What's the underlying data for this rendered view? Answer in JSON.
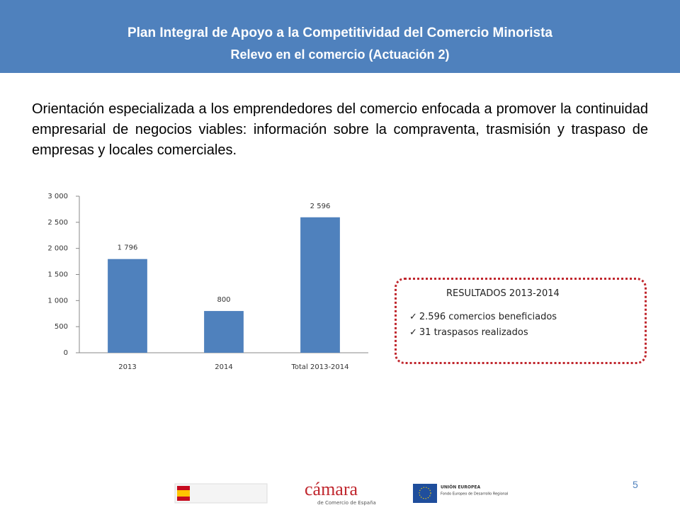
{
  "header": {
    "title": "Plan Integral de Apoyo a la Competitividad del Comercio Minorista",
    "subtitle": "Relevo en el comercio (Actuación 2)"
  },
  "body_text": "Orientación especializada a los emprendedores del comercio enfocada a promover la continuidad empresarial de negocios viables: información sobre la compraventa, trasmisión y traspaso de empresas y locales comerciales.",
  "chart_data": {
    "type": "bar",
    "categories": [
      "2013",
      "2014",
      "Total 2013-2014"
    ],
    "values": [
      1796,
      800,
      2596
    ],
    "value_labels": [
      "1 796",
      "800",
      "2 596"
    ],
    "color": "#4f81bd",
    "ylim": [
      0,
      3000
    ],
    "yticks": [
      0,
      500,
      {
        "value": 1000,
        "label": "1 000"
      },
      {
        "value": 1500,
        "label": "1 500"
      },
      {
        "value": 2000,
        "label": "2 000"
      },
      {
        "value": 2500,
        "label": "2 500"
      },
      {
        "value": 3000,
        "label": "3 000"
      }
    ],
    "grid": false
  },
  "results": {
    "title": "RESULTADOS 2013-2014",
    "items": [
      "2.596 comercios beneficiados",
      "31 traspasos realizados"
    ]
  },
  "footer": {
    "page_number": "5",
    "logo_camara": "cámara",
    "logo_camara_sub": "de Comercio de España",
    "logo_eu": "UNIÓN EUROPEA",
    "logo_eu_sub": "Fondo Europeo de Desarrollo Regional"
  }
}
